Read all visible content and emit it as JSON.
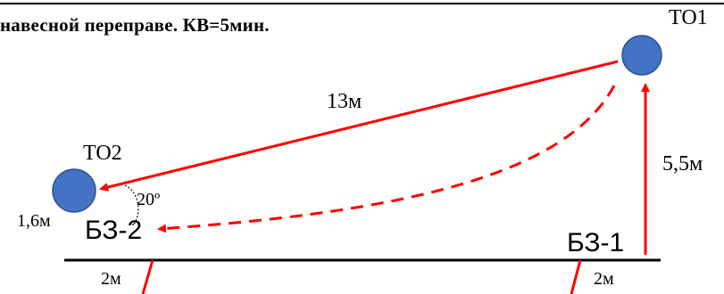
{
  "title": "навесной переправе. КВ=5мин.",
  "nodes": {
    "to1": {
      "label": "ТО1"
    },
    "to2": {
      "label": "ТО2"
    },
    "bz1": {
      "label": "БЗ-1"
    },
    "bz2": {
      "label": "БЗ-2"
    }
  },
  "measures": {
    "rope_length": "13м",
    "to1_height": "5,5м",
    "to2_height": "1,6м",
    "angle": "20º",
    "bz2_offset": "2м",
    "bz1_offset": "2м"
  },
  "colors": {
    "arrow": "#ff0000",
    "node_fill": "#4472c4",
    "node_stroke": "#2f528f",
    "ground": "#000000"
  }
}
